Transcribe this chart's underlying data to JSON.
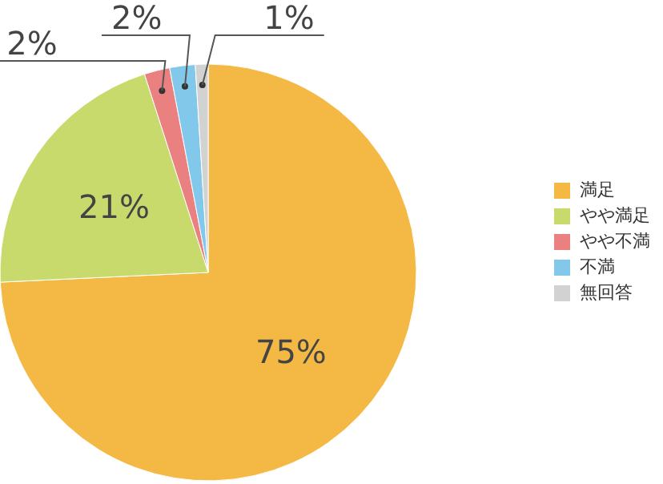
{
  "chart_data": {
    "type": "pie",
    "categories": [
      "満足",
      "やや満足",
      "やや不満",
      "不満",
      "無回答"
    ],
    "values": [
      75,
      21,
      2,
      2,
      1
    ],
    "colors": [
      "#f4b944",
      "#c9da6c",
      "#ea8180",
      "#82c8ea",
      "#d2d2d2"
    ],
    "value_labels": [
      "75%",
      "21%",
      "2%",
      "2%",
      "1%"
    ],
    "legend": "right"
  }
}
